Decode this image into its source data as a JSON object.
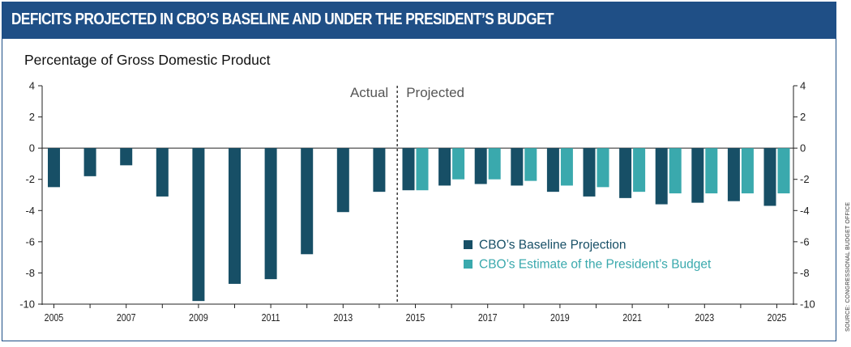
{
  "header": {
    "title": "DEFICITS PROJECTED IN CBO’S BASELINE AND UNDER THE PRESIDENT’S BUDGET"
  },
  "source_note": "SOURCE: CONGRESSIONAL BUDGET OFFICE",
  "chart_data": {
    "type": "bar",
    "title": "DEFICITS PROJECTED IN CBO’S BASELINE AND UNDER THE PRESIDENT’S BUDGET",
    "ylabel": "Percentage of Gross Domestic Product",
    "xlabel": "",
    "ylim": [
      -10,
      4
    ],
    "yticks": [
      4,
      2,
      0,
      -2,
      -4,
      -6,
      -8,
      -10
    ],
    "categories": [
      "2005",
      "2006",
      "2007",
      "2008",
      "2009",
      "2010",
      "2011",
      "2012",
      "2013",
      "2014",
      "2015",
      "2016",
      "2017",
      "2018",
      "2019",
      "2020",
      "2021",
      "2022",
      "2023",
      "2024",
      "2025"
    ],
    "xtick_labels": [
      "2005",
      "2007",
      "2009",
      "2011",
      "2013",
      "2015",
      "2017",
      "2019",
      "2021",
      "2023",
      "2025"
    ],
    "series": [
      {
        "name": "CBO’s Baseline Projection",
        "color": "#174f66",
        "values": [
          -2.5,
          -1.8,
          -1.1,
          -3.1,
          -9.8,
          -8.7,
          -8.4,
          -6.8,
          -4.1,
          -2.8,
          -2.7,
          -2.4,
          -2.3,
          -2.4,
          -2.8,
          -3.1,
          -3.2,
          -3.6,
          -3.5,
          -3.4,
          -3.7
        ]
      },
      {
        "name": "CBO’s Estimate of the President’s Budget",
        "color": "#3aa9ad",
        "values": [
          null,
          null,
          null,
          null,
          null,
          null,
          null,
          null,
          null,
          null,
          -2.7,
          -2.0,
          -2.0,
          -2.1,
          -2.4,
          -2.5,
          -2.8,
          -2.9,
          -2.9,
          -2.9,
          -2.9
        ]
      }
    ],
    "annotations": {
      "actual_label": "Actual",
      "projected_label": "Projected"
    },
    "legend_position": "lower-right",
    "grid": false
  }
}
